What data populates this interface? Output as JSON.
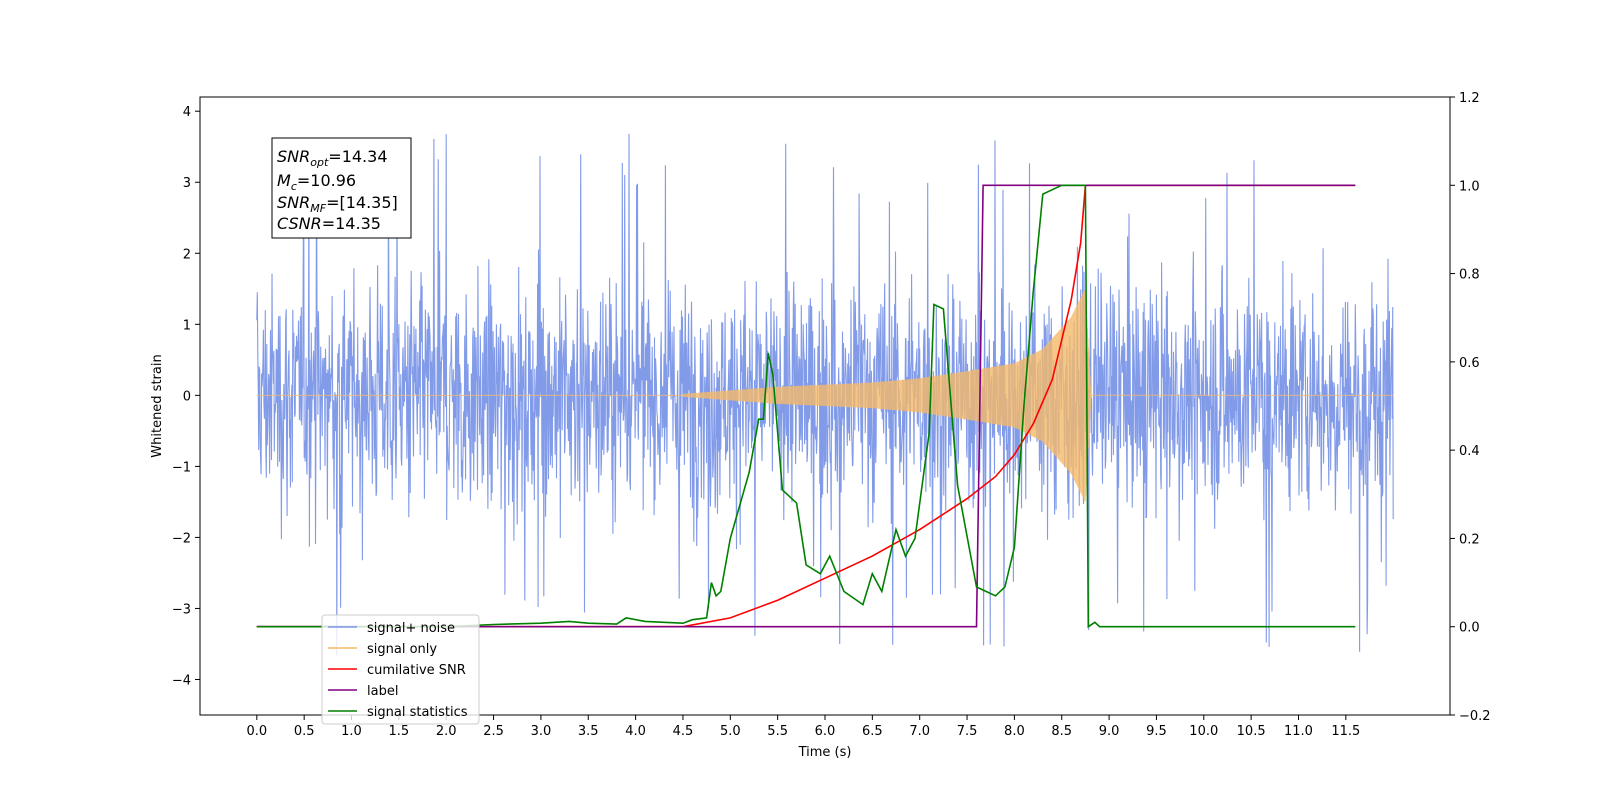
{
  "chart_data": {
    "type": "line",
    "xlabel": "Time (s)",
    "ylabel": "Whitened strain",
    "x_ticks": [
      "0.0",
      "0.5",
      "1.0",
      "1.5",
      "2.0",
      "2.5",
      "3.0",
      "3.5",
      "4.0",
      "4.5",
      "5.0",
      "5.5",
      "6.0",
      "6.5",
      "7.0",
      "7.5",
      "8.0",
      "8.5",
      "9.0",
      "9.5",
      "10.0",
      "10.5",
      "11.0",
      "11.5"
    ],
    "x_tick_values": [
      0.0,
      0.5,
      1.0,
      1.5,
      2.0,
      2.5,
      3.0,
      3.5,
      4.0,
      4.5,
      5.0,
      5.5,
      6.0,
      6.5,
      7.0,
      7.5,
      8.0,
      8.5,
      9.0,
      9.5,
      10.0,
      10.5,
      11.0,
      11.5
    ],
    "xlim": [
      -0.6,
      12.6
    ],
    "y_left_ticks": [
      "4",
      "3",
      "2",
      "1",
      "0",
      "−1",
      "−2",
      "−3",
      "−4"
    ],
    "y_left_tick_values": [
      4,
      3,
      2,
      1,
      0,
      -1,
      -2,
      -3,
      -4
    ],
    "ylim_left": [
      -4.5,
      4.2
    ],
    "y_right_ticks": [
      "1.2",
      "1.0",
      "0.8",
      "0.6",
      "0.4",
      "0.2",
      "0.0",
      "−0.2"
    ],
    "y_right_tick_values": [
      1.2,
      1.0,
      0.8,
      0.6,
      0.4,
      0.2,
      0.0,
      -0.2
    ],
    "ylim_right": [
      -0.2,
      1.2
    ],
    "grid": false,
    "legend_position": "lower-left",
    "annotation": {
      "lines": [
        {
          "base": "SNR",
          "sub": "opt",
          "value": "=14.34"
        },
        {
          "base": "M",
          "sub": "c",
          "value": "=10.96"
        },
        {
          "base": "SNR",
          "sub": "MF",
          "value": "=[14.35]"
        },
        {
          "base": "CSNR",
          "sub": "",
          "value": "=14.35"
        }
      ]
    },
    "series": [
      {
        "name": "signal+ noise",
        "axis": "left",
        "color": "#7b96e8",
        "description_kind": "noise",
        "x_range": [
          0.0,
          12.0
        ],
        "envelope_typical": 1.5,
        "max_value": 3.8,
        "min_value": -4.1
      },
      {
        "name": "signal only",
        "axis": "left",
        "color": "#f5b969",
        "description_kind": "chirp",
        "x_range": [
          0.0,
          12.0
        ],
        "chirp_start": 4.5,
        "chirp_merger": 8.75,
        "amplitude_points": [
          [
            4.5,
            0.02
          ],
          [
            5.5,
            0.12
          ],
          [
            6.5,
            0.18
          ],
          [
            7.0,
            0.24
          ],
          [
            7.5,
            0.34
          ],
          [
            8.0,
            0.45
          ],
          [
            8.3,
            0.65
          ],
          [
            8.6,
            1.1
          ],
          [
            8.75,
            1.5
          ]
        ]
      },
      {
        "name": "cumilative SNR",
        "axis": "right",
        "color": "#ff0000",
        "x": [
          0.0,
          4.5,
          5.0,
          5.5,
          6.0,
          6.5,
          7.0,
          7.5,
          7.8,
          8.0,
          8.2,
          8.4,
          8.6,
          8.7,
          8.75,
          8.76,
          11.6
        ],
        "y": [
          0.0,
          0.0,
          0.02,
          0.06,
          0.11,
          0.16,
          0.22,
          0.29,
          0.34,
          0.39,
          0.46,
          0.56,
          0.74,
          0.87,
          1.0,
          1.0,
          1.0
        ]
      },
      {
        "name": "label",
        "axis": "right",
        "color": "#800080",
        "x": [
          0.0,
          7.6,
          7.67,
          11.6
        ],
        "y": [
          0.0,
          0.0,
          1.0,
          1.0
        ]
      },
      {
        "name": "signal statistics",
        "axis": "right",
        "color": "#008000",
        "x": [
          0.0,
          2.0,
          2.5,
          3.0,
          3.3,
          3.5,
          3.8,
          3.9,
          4.1,
          4.3,
          4.5,
          4.6,
          4.75,
          4.8,
          4.85,
          4.9,
          5.0,
          5.2,
          5.3,
          5.35,
          5.4,
          5.45,
          5.55,
          5.6,
          5.7,
          5.8,
          5.95,
          6.05,
          6.2,
          6.4,
          6.5,
          6.6,
          6.75,
          6.85,
          6.95,
          7.1,
          7.15,
          7.25,
          7.4,
          7.6,
          7.7,
          7.8,
          7.9,
          8.0,
          8.1,
          8.2,
          8.3,
          8.4,
          8.5,
          8.6,
          8.75,
          8.78,
          8.85,
          8.9,
          11.6
        ],
        "y": [
          0.0,
          0.0,
          0.005,
          0.008,
          0.012,
          0.008,
          0.006,
          0.02,
          0.012,
          0.01,
          0.008,
          0.016,
          0.02,
          0.1,
          0.07,
          0.08,
          0.2,
          0.35,
          0.47,
          0.47,
          0.62,
          0.57,
          0.31,
          0.3,
          0.28,
          0.14,
          0.12,
          0.16,
          0.08,
          0.05,
          0.12,
          0.08,
          0.22,
          0.16,
          0.2,
          0.44,
          0.73,
          0.72,
          0.32,
          0.09,
          0.08,
          0.07,
          0.09,
          0.18,
          0.5,
          0.76,
          0.98,
          0.99,
          1.0,
          1.0,
          1.0,
          0.0,
          0.01,
          0.0,
          0.0
        ]
      }
    ]
  }
}
